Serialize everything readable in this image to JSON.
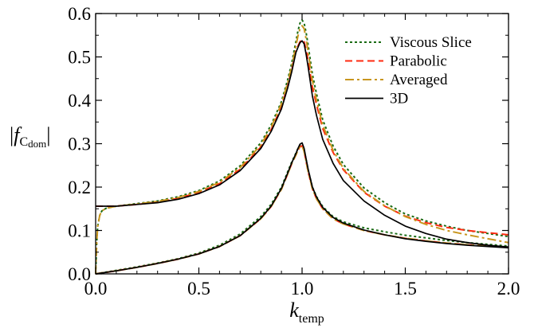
{
  "chart_data": {
    "type": "line",
    "xlabel": {
      "base": "k",
      "sub": "temp"
    },
    "ylabel": {
      "open": "|",
      "base": "f",
      "sub": "C",
      "subsub": "dom",
      "close": "|"
    },
    "xlim": [
      0.0,
      2.0
    ],
    "ylim": [
      0.0,
      0.6
    ],
    "x_ticks": [
      "0.0",
      "0.5",
      "1.0",
      "1.5",
      "2.0"
    ],
    "y_ticks": [
      "0.0",
      "0.1",
      "0.2",
      "0.3",
      "0.4",
      "0.5",
      "0.6"
    ],
    "grid": false,
    "legend_position": "top-right",
    "series": [
      {
        "name": "Viscous Slice",
        "color": "#1a6b14",
        "style": "dotted",
        "upper": {
          "x": [
            0.0,
            0.005,
            0.01,
            0.02,
            0.03,
            0.05,
            0.08,
            0.1,
            0.2,
            0.3,
            0.4,
            0.5,
            0.6,
            0.7,
            0.8,
            0.85,
            0.9,
            0.93,
            0.95,
            0.97,
            0.98,
            0.99,
            1.0,
            1.01,
            1.02,
            1.03,
            1.05,
            1.07,
            1.1,
            1.15,
            1.2,
            1.3,
            1.4,
            1.5,
            1.6,
            1.7,
            1.8,
            1.9,
            2.0
          ],
          "y": [
            0.0,
            0.07,
            0.11,
            0.135,
            0.145,
            0.151,
            0.154,
            0.156,
            0.162,
            0.168,
            0.178,
            0.192,
            0.214,
            0.249,
            0.302,
            0.343,
            0.397,
            0.447,
            0.486,
            0.535,
            0.56,
            0.578,
            0.585,
            0.578,
            0.555,
            0.525,
            0.46,
            0.415,
            0.355,
            0.295,
            0.252,
            0.198,
            0.164,
            0.138,
            0.122,
            0.11,
            0.1,
            0.093,
            0.086
          ]
        },
        "lower": {
          "x": [
            0.0,
            0.1,
            0.2,
            0.3,
            0.4,
            0.5,
            0.6,
            0.7,
            0.8,
            0.85,
            0.9,
            0.93,
            0.95,
            0.97,
            0.98,
            0.99,
            1.0,
            1.01,
            1.02,
            1.03,
            1.05,
            1.07,
            1.1,
            1.15,
            1.2,
            1.3,
            1.4,
            1.5,
            1.6,
            1.7,
            1.8,
            1.9,
            2.0
          ],
          "y": [
            0.0,
            0.008,
            0.016,
            0.025,
            0.035,
            0.048,
            0.066,
            0.092,
            0.132,
            0.16,
            0.2,
            0.235,
            0.258,
            0.278,
            0.289,
            0.296,
            0.297,
            0.285,
            0.262,
            0.238,
            0.2,
            0.178,
            0.155,
            0.132,
            0.12,
            0.106,
            0.097,
            0.089,
            0.083,
            0.077,
            0.072,
            0.068,
            0.064
          ]
        }
      },
      {
        "name": "Parabolic",
        "color": "#ff2a10",
        "style": "dashed",
        "upper": {
          "x": [
            0.0,
            0.1,
            0.2,
            0.3,
            0.4,
            0.5,
            0.6,
            0.7,
            0.8,
            0.85,
            0.9,
            0.93,
            0.95,
            0.97,
            0.98,
            0.99,
            1.0,
            1.01,
            1.02,
            1.03,
            1.05,
            1.07,
            1.1,
            1.15,
            1.2,
            1.3,
            1.4,
            1.5,
            1.6,
            1.7,
            1.8,
            1.9,
            2.0
          ],
          "y": [
            0.156,
            0.156,
            0.16,
            0.165,
            0.174,
            0.188,
            0.208,
            0.241,
            0.292,
            0.332,
            0.385,
            0.433,
            0.47,
            0.515,
            0.525,
            0.535,
            0.54,
            0.535,
            0.515,
            0.49,
            0.43,
            0.39,
            0.335,
            0.28,
            0.24,
            0.188,
            0.156,
            0.133,
            0.118,
            0.107,
            0.1,
            0.095,
            0.09
          ]
        },
        "lower": {
          "x": [
            0.0,
            0.1,
            0.2,
            0.3,
            0.4,
            0.5,
            0.6,
            0.7,
            0.8,
            0.85,
            0.9,
            0.93,
            0.95,
            0.97,
            0.98,
            0.99,
            1.0,
            1.01,
            1.02,
            1.03,
            1.05,
            1.07,
            1.1,
            1.15,
            1.2,
            1.3,
            1.4,
            1.5,
            1.6,
            1.7,
            1.8,
            1.9,
            2.0
          ],
          "y": [
            0.0,
            0.007,
            0.015,
            0.024,
            0.034,
            0.046,
            0.063,
            0.088,
            0.127,
            0.155,
            0.195,
            0.23,
            0.254,
            0.274,
            0.285,
            0.293,
            0.295,
            0.282,
            0.258,
            0.234,
            0.196,
            0.173,
            0.15,
            0.127,
            0.115,
            0.1,
            0.09,
            0.082,
            0.076,
            0.071,
            0.067,
            0.064,
            0.061
          ]
        }
      },
      {
        "name": "Averaged",
        "color": "#c8961e",
        "style": "dashdot",
        "upper": {
          "x": [
            0.0,
            0.005,
            0.01,
            0.02,
            0.03,
            0.05,
            0.08,
            0.1,
            0.2,
            0.3,
            0.4,
            0.5,
            0.6,
            0.7,
            0.8,
            0.85,
            0.9,
            0.93,
            0.95,
            0.97,
            0.98,
            0.99,
            1.0,
            1.01,
            1.02,
            1.03,
            1.05,
            1.07,
            1.1,
            1.15,
            1.2,
            1.3,
            1.4,
            1.5,
            1.6,
            1.7,
            1.8,
            1.9,
            2.0
          ],
          "y": [
            0.0,
            0.07,
            0.11,
            0.135,
            0.145,
            0.151,
            0.154,
            0.156,
            0.161,
            0.167,
            0.176,
            0.19,
            0.211,
            0.245,
            0.297,
            0.338,
            0.392,
            0.44,
            0.478,
            0.525,
            0.548,
            0.565,
            0.572,
            0.565,
            0.54,
            0.51,
            0.445,
            0.4,
            0.343,
            0.285,
            0.243,
            0.19,
            0.157,
            0.132,
            0.114,
            0.1,
            0.09,
            0.081,
            0.072
          ]
        },
        "lower": {
          "x": [
            0.0,
            0.1,
            0.2,
            0.3,
            0.4,
            0.5,
            0.6,
            0.7,
            0.8,
            0.85,
            0.9,
            0.93,
            0.95,
            0.97,
            0.98,
            0.99,
            1.0,
            1.01,
            1.02,
            1.03,
            1.05,
            1.07,
            1.1,
            1.15,
            1.2,
            1.3,
            1.4,
            1.5,
            1.6,
            1.7,
            1.8,
            1.9,
            2.0
          ],
          "y": [
            0.0,
            0.007,
            0.015,
            0.024,
            0.034,
            0.046,
            0.063,
            0.088,
            0.127,
            0.155,
            0.195,
            0.23,
            0.254,
            0.274,
            0.285,
            0.293,
            0.295,
            0.282,
            0.258,
            0.234,
            0.196,
            0.173,
            0.15,
            0.127,
            0.115,
            0.1,
            0.09,
            0.082,
            0.076,
            0.071,
            0.067,
            0.064,
            0.061
          ]
        }
      },
      {
        "name": "3D",
        "color": "#000000",
        "style": "solid",
        "upper": {
          "x": [
            0.0,
            0.1,
            0.2,
            0.3,
            0.4,
            0.5,
            0.6,
            0.7,
            0.8,
            0.85,
            0.9,
            0.93,
            0.95,
            0.97,
            0.98,
            0.99,
            1.0,
            1.01,
            1.02,
            1.03,
            1.05,
            1.07,
            1.1,
            1.15,
            1.2,
            1.3,
            1.4,
            1.5,
            1.6,
            1.7,
            1.8,
            1.9,
            2.0
          ],
          "y": [
            0.156,
            0.156,
            0.16,
            0.164,
            0.172,
            0.185,
            0.205,
            0.238,
            0.289,
            0.328,
            0.38,
            0.428,
            0.466,
            0.51,
            0.522,
            0.533,
            0.537,
            0.53,
            0.505,
            0.475,
            0.41,
            0.365,
            0.31,
            0.255,
            0.215,
            0.168,
            0.135,
            0.11,
            0.093,
            0.08,
            0.072,
            0.066,
            0.062
          ]
        },
        "lower": {
          "x": [
            0.0,
            0.1,
            0.2,
            0.3,
            0.4,
            0.5,
            0.6,
            0.7,
            0.8,
            0.85,
            0.9,
            0.93,
            0.95,
            0.97,
            0.98,
            0.99,
            1.0,
            1.01,
            1.02,
            1.03,
            1.05,
            1.07,
            1.1,
            1.15,
            1.2,
            1.3,
            1.4,
            1.5,
            1.6,
            1.7,
            1.8,
            1.9,
            2.0
          ],
          "y": [
            0.0,
            0.007,
            0.015,
            0.024,
            0.034,
            0.046,
            0.063,
            0.088,
            0.128,
            0.156,
            0.197,
            0.232,
            0.256,
            0.277,
            0.289,
            0.299,
            0.302,
            0.289,
            0.264,
            0.24,
            0.2,
            0.177,
            0.153,
            0.13,
            0.117,
            0.101,
            0.09,
            0.081,
            0.075,
            0.07,
            0.066,
            0.063,
            0.06
          ]
        }
      }
    ]
  }
}
